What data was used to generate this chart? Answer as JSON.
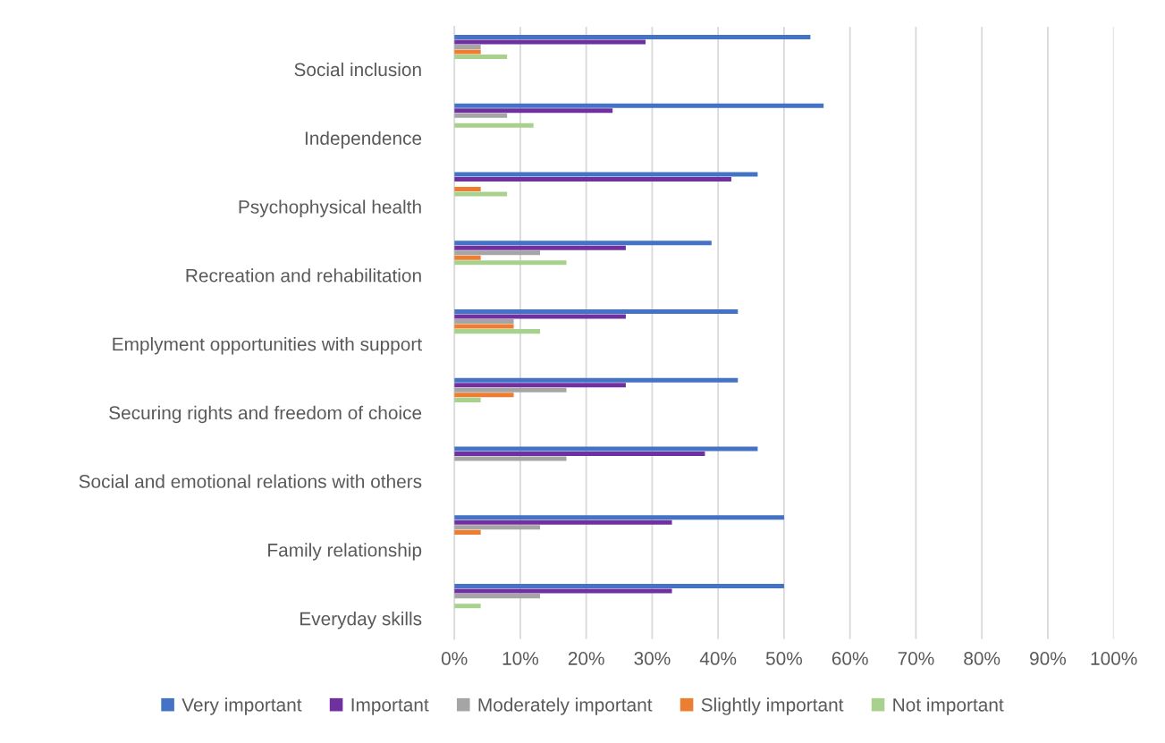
{
  "chart_data": {
    "type": "bar",
    "orientation": "horizontal",
    "categories": [
      "Social inclusion",
      "Independence",
      "Psychophysical health",
      "Recreation and rehabilitation",
      "Emplyment opportunities with support",
      "Securing rights and freedom of choice",
      "Social and emotional relations with others",
      "Family relationship",
      "Everyday skills"
    ],
    "series": [
      {
        "name": "Very important",
        "color": "#4472c4",
        "values": [
          54,
          56,
          46,
          39,
          43,
          43,
          46,
          50,
          50
        ]
      },
      {
        "name": "Important",
        "color": "#7030a0",
        "values": [
          29,
          24,
          42,
          26,
          26,
          26,
          38,
          33,
          33
        ]
      },
      {
        "name": "Moderately important",
        "color": "#a5a5a5",
        "values": [
          4,
          8,
          0,
          13,
          9,
          17,
          17,
          13,
          13
        ]
      },
      {
        "name": "Slightly important",
        "color": "#ed7d31",
        "values": [
          4,
          0,
          4,
          4,
          9,
          9,
          0,
          4,
          0
        ]
      },
      {
        "name": "Not important",
        "color": "#a9d18e",
        "values": [
          8,
          12,
          8,
          17,
          13,
          4,
          0,
          0,
          4
        ]
      }
    ],
    "xlim": [
      0,
      100
    ],
    "xticks": [
      {
        "value": 0,
        "label": "0%"
      },
      {
        "value": 10,
        "label": "10%"
      },
      {
        "value": 20,
        "label": "20%"
      },
      {
        "value": 30,
        "label": "30%"
      },
      {
        "value": 40,
        "label": "40%"
      },
      {
        "value": 50,
        "label": "50%"
      },
      {
        "value": 60,
        "label": "60%"
      },
      {
        "value": 70,
        "label": "70%"
      },
      {
        "value": 80,
        "label": "80%"
      },
      {
        "value": 90,
        "label": "90%"
      },
      {
        "value": 100,
        "label": "100%"
      }
    ],
    "grid": "x",
    "legend": "bottom"
  }
}
